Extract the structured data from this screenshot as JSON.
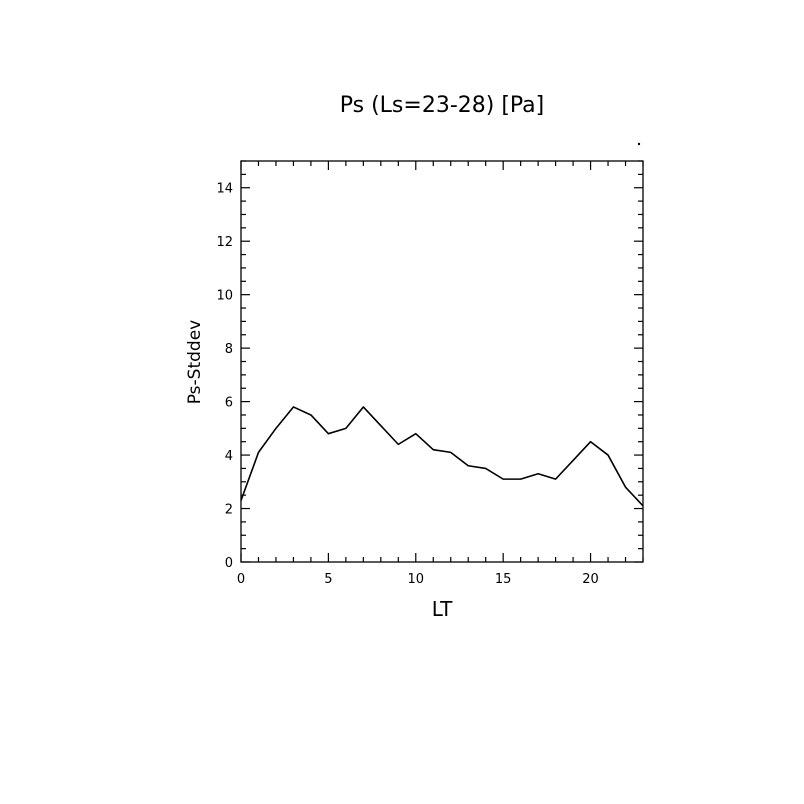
{
  "chart_data": {
    "type": "line",
    "title": "Ps (Ls=23-28) [Pa]",
    "xlabel": "LT",
    "ylabel": "Ps-Stddev",
    "xlim": [
      0,
      23
    ],
    "ylim": [
      0,
      15
    ],
    "x_ticks": [
      0,
      5,
      10,
      15,
      20
    ],
    "y_ticks": [
      0,
      2,
      4,
      6,
      8,
      10,
      12,
      14
    ],
    "grid": false,
    "series": [
      {
        "x": [
          0,
          1,
          2,
          3,
          4,
          5,
          6,
          7,
          8,
          9,
          10,
          11,
          12,
          13,
          14,
          15,
          16,
          17,
          18,
          19,
          20,
          21,
          22,
          23
        ],
        "values": [
          2.3,
          4.1,
          5.0,
          5.8,
          5.5,
          4.8,
          5.0,
          5.8,
          5.1,
          4.4,
          4.8,
          4.2,
          4.1,
          3.6,
          3.5,
          3.1,
          3.1,
          3.3,
          3.1,
          3.8,
          4.5,
          4.0,
          2.8,
          2.1
        ]
      }
    ]
  }
}
